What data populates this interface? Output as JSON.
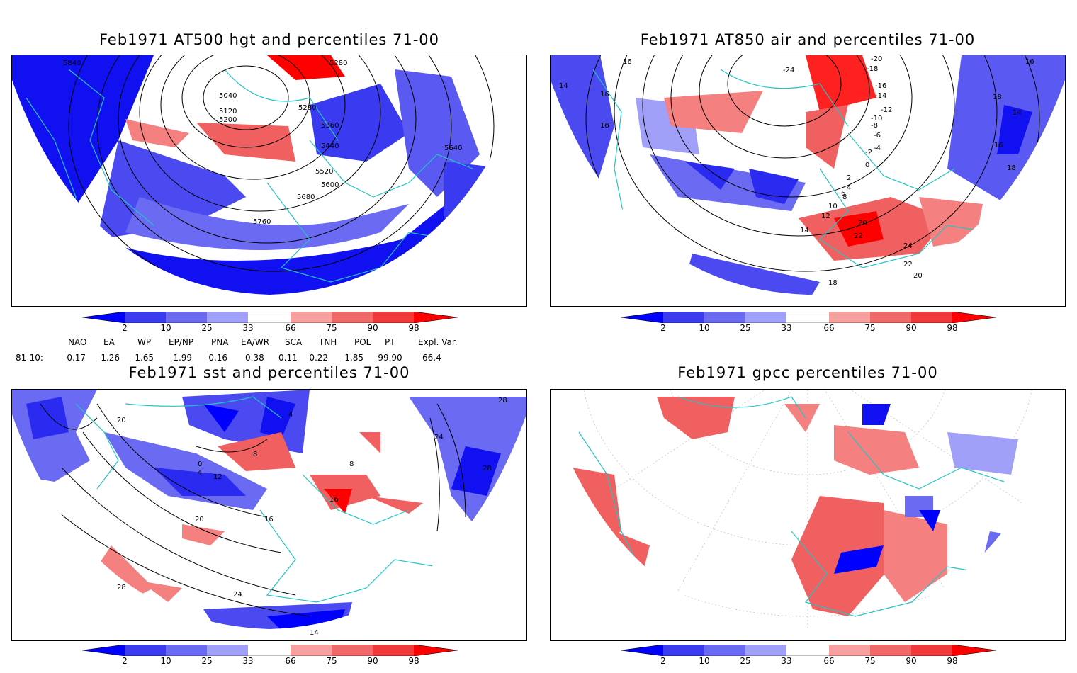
{
  "panels": [
    {
      "title": "Feb1971 AT500 hgt and percentiles 71-00",
      "contour_labels": [
        "5840",
        "5280",
        "5040",
        "5120",
        "5200",
        "5280",
        "5360",
        "5440",
        "5520",
        "5600",
        "5680",
        "5760",
        "5640"
      ]
    },
    {
      "title": "Feb1971 AT850 air and percentiles 71-00",
      "contour_labels": [
        "16",
        "14",
        "16",
        "18",
        "-24",
        "-20",
        "-18",
        "-16",
        "-14",
        "-12",
        "-10",
        "-8",
        "-6",
        "-4",
        "-2",
        "0",
        "2",
        "4",
        "6",
        "8",
        "10",
        "12",
        "14",
        "16",
        "18",
        "20",
        "22",
        "24",
        "22",
        "20",
        "18",
        "16",
        "14",
        "18"
      ]
    },
    {
      "title": "Feb1971 sst and percentiles 71-00",
      "contour_labels": [
        "20",
        "0",
        "4",
        "8",
        "12",
        "16",
        "20",
        "24",
        "28",
        "4",
        "8",
        "16",
        "24",
        "28",
        "28",
        "14"
      ]
    },
    {
      "title": "Feb1971 gpcc percentiles 71-00",
      "contour_labels": []
    }
  ],
  "colorbar": {
    "labels": [
      "2",
      "10",
      "25",
      "33",
      "66",
      "75",
      "90",
      "98"
    ],
    "colors": [
      "#0000ff",
      "#3b3bf0",
      "#6a6af2",
      "#a0a0f8",
      "#ffffff",
      "#f7a0a0",
      "#f06868",
      "#f03a3a",
      "#ff0000"
    ]
  },
  "indices": {
    "header": [
      "NAO",
      "EA",
      "WP",
      "EP/NP",
      "PNA",
      "EA/WR",
      "SCA",
      "TNH",
      "POL",
      "PT",
      "Expl. Var."
    ],
    "row_label": "81-10:",
    "values": [
      "-0.17",
      "-1.26",
      "-1.65",
      "-1.99",
      "-0.16",
      "0.38",
      "0.11",
      "-0.22",
      "-1.85",
      "-99.90",
      "66.4"
    ]
  }
}
